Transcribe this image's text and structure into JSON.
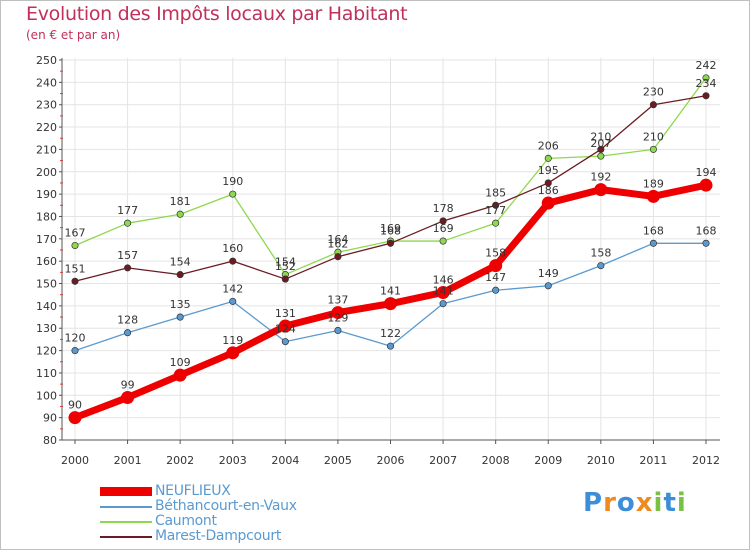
{
  "header": {
    "title": "Evolution des Impôts locaux par Habitant",
    "subtitle": "(en € et par an)"
  },
  "chart_data": {
    "type": "line",
    "title": "Evolution des Impôts locaux par Habitant",
    "subtitle": "(en € et par an)",
    "xlabel": "",
    "ylabel": "",
    "x": [
      2000,
      2001,
      2002,
      2003,
      2004,
      2005,
      2006,
      2007,
      2008,
      2009,
      2010,
      2011,
      2012
    ],
    "x_tick_labels": [
      "2000",
      "2001",
      "2002",
      "2003",
      "2004",
      "2005",
      "2006",
      "2007",
      "2008",
      "2009",
      "2010",
      "2011",
      "2012"
    ],
    "ylim": [
      80,
      250
    ],
    "y_ticks": [
      80,
      90,
      100,
      110,
      120,
      130,
      140,
      150,
      160,
      170,
      180,
      190,
      200,
      210,
      220,
      230,
      240,
      250
    ],
    "grid": true,
    "legend_position": "bottom-left",
    "series": [
      {
        "name": "NEUFLIEUX",
        "color": "#ee0000",
        "values": [
          90,
          99,
          109,
          119,
          131,
          137,
          141,
          146,
          158,
          186,
          192,
          189,
          194
        ]
      },
      {
        "name": "Béthancourt-en-Vaux",
        "color": "#5a9ad0",
        "values": [
          120,
          128,
          135,
          142,
          124,
          129,
          122,
          141,
          147,
          149,
          158,
          168,
          168
        ]
      },
      {
        "name": "Caumont",
        "color": "#8ed84e",
        "values": [
          167,
          177,
          181,
          190,
          154,
          164,
          169,
          169,
          177,
          206,
          207,
          210,
          242
        ]
      },
      {
        "name": "Marest-Dampcourt",
        "color": "#6b1c22",
        "values": [
          151,
          157,
          154,
          160,
          152,
          162,
          168,
          178,
          185,
          195,
          210,
          230,
          234
        ]
      }
    ]
  },
  "logo": {
    "letters": [
      "P",
      "r",
      "o",
      "x",
      "i",
      "t",
      "i"
    ],
    "colors": [
      "#3d8ed8",
      "#f08a1e",
      "#3d8ed8",
      "#f08a1e",
      "#7ac143",
      "#3d8ed8",
      "#7ac143"
    ]
  }
}
